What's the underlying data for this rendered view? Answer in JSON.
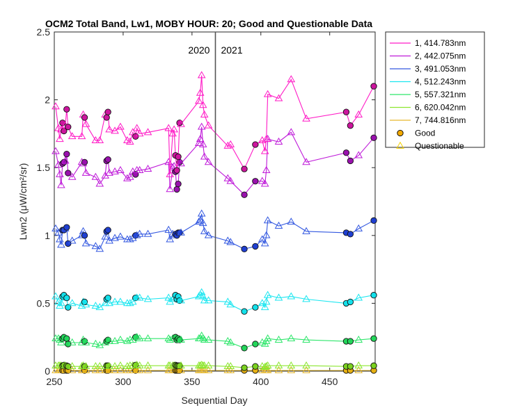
{
  "chart_data": {
    "type": "scatter",
    "title": "OCM2 Total Band, Lw1, MOBY HOUR: 20;  Good and Questionable Data",
    "xlabel": "Sequential Day",
    "ylabel": "Lwn2 (μW/cm²/sr)",
    "xlim": [
      250,
      483
    ],
    "ylim": [
      0,
      2.5
    ],
    "x_ticks": [
      250,
      300,
      350,
      400,
      450
    ],
    "y_ticks": [
      0,
      0.5,
      1,
      1.5,
      2,
      2.5
    ],
    "x_tick_labels": [
      "250",
      "300",
      "350",
      "400",
      "450"
    ],
    "y_tick_labels": [
      "0",
      "0.5",
      "1",
      "1.5",
      "2",
      "2.5"
    ],
    "grid": false,
    "legend_position": "outside-top-right",
    "year_divider": {
      "x": 367,
      "left_label": "2020",
      "right_label": "2021"
    },
    "x": [
      251,
      253,
      254,
      255,
      256,
      257,
      258,
      259,
      260,
      263,
      270,
      271,
      272,
      273,
      280,
      283,
      287,
      288,
      289,
      290,
      294,
      298,
      303,
      305,
      307,
      309,
      310,
      312,
      318,
      333,
      334,
      336,
      337,
      338,
      339,
      340,
      341,
      342,
      355,
      356,
      357,
      358,
      359,
      362,
      376,
      378,
      388,
      396,
      401,
      403,
      404,
      405,
      413,
      422,
      433,
      462,
      465,
      471,
      482
    ],
    "marker_type": [
      "Q",
      "Q",
      "Q",
      "Q",
      "G",
      "G",
      "Q",
      "G",
      "G",
      "Q",
      "Q",
      "Q",
      "G",
      "Q",
      "Q",
      "Q",
      "Q",
      "G",
      "G",
      "Q",
      "Q",
      "Q",
      "Q",
      "Q",
      "Q",
      "G",
      "Q",
      "Q",
      "Q",
      "Q",
      "Q",
      "Q",
      "Q",
      "G",
      "G",
      "G",
      "G",
      "Q",
      "Q",
      "Q",
      "Q",
      "Q",
      "Q",
      "Q",
      "Q",
      "Q",
      "G",
      "G",
      "Q",
      "Q",
      "Q",
      "Q",
      "Q",
      "Q",
      "Q",
      "G",
      "G",
      "Q",
      "G"
    ],
    "series": [
      {
        "name": "1, 414.783nm",
        "color": "#ff1ac6",
        "good_fill": "#cc159e",
        "values": [
          1.95,
          1.79,
          1.71,
          1.78,
          1.83,
          1.77,
          1.81,
          1.93,
          1.8,
          1.73,
          1.73,
          1.89,
          1.87,
          1.82,
          1.7,
          1.7,
          1.89,
          1.87,
          1.91,
          1.78,
          1.77,
          1.8,
          1.7,
          1.69,
          1.76,
          1.73,
          1.79,
          1.75,
          1.76,
          1.79,
          1.45,
          1.75,
          1.78,
          1.59,
          1.48,
          1.58,
          1.83,
          1.82,
          1.99,
          2.05,
          2.18,
          1.96,
          1.89,
          1.81,
          1.66,
          1.67,
          1.49,
          1.67,
          1.7,
          1.62,
          1.71,
          2.04,
          2.01,
          2.15,
          1.86,
          1.91,
          1.81,
          1.89,
          2.1
        ]
      },
      {
        "name": "2, 442.075nm",
        "color": "#bf1ad9",
        "good_fill": "#9911ad",
        "values": [
          1.62,
          1.52,
          1.45,
          1.37,
          1.53,
          1.54,
          1.55,
          1.6,
          1.46,
          1.43,
          1.54,
          1.53,
          1.54,
          1.46,
          1.43,
          1.38,
          1.44,
          1.55,
          1.56,
          1.46,
          1.47,
          1.48,
          1.42,
          1.43,
          1.47,
          1.45,
          1.48,
          1.48,
          1.49,
          1.54,
          1.34,
          1.5,
          1.51,
          1.47,
          1.34,
          1.38,
          1.54,
          1.53,
          1.68,
          1.71,
          1.8,
          1.67,
          1.58,
          1.54,
          1.42,
          1.4,
          1.3,
          1.4,
          1.4,
          1.38,
          1.48,
          1.71,
          1.69,
          1.76,
          1.54,
          1.61,
          1.55,
          1.59,
          1.72
        ]
      },
      {
        "name": "3, 491.053nm",
        "color": "#3358e0",
        "good_fill": "#1f3fd1",
        "values": [
          1.05,
          1.02,
          0.97,
          0.93,
          1.04,
          1.04,
          1.05,
          1.06,
          0.94,
          0.96,
          1.0,
          1.03,
          1.0,
          0.94,
          0.92,
          0.9,
          0.99,
          1.03,
          1.04,
          0.96,
          0.98,
          0.99,
          0.97,
          0.97,
          0.98,
          1.0,
          1.0,
          1.01,
          1.01,
          1.04,
          0.97,
          1.01,
          1.0,
          1.01,
          1.0,
          1.02,
          1.02,
          1.02,
          1.1,
          1.11,
          1.16,
          1.09,
          1.03,
          1.0,
          0.96,
          0.95,
          0.9,
          0.92,
          0.97,
          0.94,
          1.0,
          1.11,
          1.07,
          1.1,
          1.03,
          1.02,
          1.01,
          1.05,
          1.11
        ]
      },
      {
        "name": "4, 512.243nm",
        "color": "#1ae6f0",
        "good_fill": "#12e0ea",
        "values": [
          0.55,
          0.51,
          0.48,
          0.5,
          0.55,
          0.56,
          0.54,
          0.54,
          0.47,
          0.5,
          0.48,
          0.51,
          0.51,
          0.49,
          0.48,
          0.47,
          0.5,
          0.53,
          0.54,
          0.5,
          0.51,
          0.51,
          0.5,
          0.5,
          0.51,
          0.54,
          0.54,
          0.54,
          0.53,
          0.54,
          0.51,
          0.53,
          0.54,
          0.56,
          0.53,
          0.55,
          0.52,
          0.52,
          0.55,
          0.56,
          0.58,
          0.55,
          0.52,
          0.52,
          0.51,
          0.49,
          0.44,
          0.47,
          0.5,
          0.47,
          0.51,
          0.56,
          0.54,
          0.55,
          0.53,
          0.5,
          0.51,
          0.54,
          0.56
        ]
      },
      {
        "name": "5, 557.321nm",
        "color": "#2ee66b",
        "good_fill": "#22d65a",
        "values": [
          0.24,
          0.24,
          0.23,
          0.21,
          0.24,
          0.25,
          0.24,
          0.24,
          0.2,
          0.21,
          0.21,
          0.23,
          0.22,
          0.21,
          0.2,
          0.19,
          0.21,
          0.22,
          0.23,
          0.22,
          0.22,
          0.23,
          0.22,
          0.23,
          0.23,
          0.25,
          0.25,
          0.24,
          0.24,
          0.24,
          0.23,
          0.24,
          0.24,
          0.25,
          0.23,
          0.24,
          0.23,
          0.23,
          0.24,
          0.24,
          0.26,
          0.24,
          0.23,
          0.23,
          0.22,
          0.21,
          0.17,
          0.2,
          0.21,
          0.2,
          0.22,
          0.24,
          0.23,
          0.24,
          0.23,
          0.22,
          0.22,
          0.23,
          0.24
        ]
      },
      {
        "name": "6, 620.042nm",
        "color": "#8ce62e",
        "good_fill": "#7ad11f",
        "values": [
          0.04,
          0.04,
          0.04,
          0.04,
          0.04,
          0.045,
          0.04,
          0.04,
          0.035,
          0.035,
          0.035,
          0.04,
          0.035,
          0.035,
          0.035,
          0.035,
          0.035,
          0.04,
          0.04,
          0.035,
          0.035,
          0.04,
          0.035,
          0.04,
          0.04,
          0.045,
          0.045,
          0.04,
          0.04,
          0.04,
          0.04,
          0.04,
          0.04,
          0.045,
          0.04,
          0.04,
          0.04,
          0.04,
          0.04,
          0.04,
          0.045,
          0.04,
          0.04,
          0.04,
          0.035,
          0.035,
          0.025,
          0.035,
          0.035,
          0.03,
          0.035,
          0.04,
          0.04,
          0.04,
          0.04,
          0.035,
          0.035,
          0.04,
          0.04
        ]
      },
      {
        "name": "7, 744.816nm",
        "color": "#e6b82e",
        "good_fill": "#e6b012",
        "values": [
          0.005,
          0.005,
          0.005,
          0.005,
          0.005,
          0.005,
          0.005,
          0.005,
          0.005,
          0.005,
          0.005,
          0.005,
          0.005,
          0.005,
          0.005,
          0.005,
          0.005,
          0.005,
          0.005,
          0.005,
          0.005,
          0.005,
          0.005,
          0.005,
          0.005,
          0.005,
          0.005,
          0.005,
          0.005,
          0.005,
          0.005,
          0.005,
          0.005,
          0.005,
          0.005,
          0.005,
          0.005,
          0.005,
          0.005,
          0.005,
          0.005,
          0.005,
          0.005,
          0.005,
          0.005,
          0.005,
          0.005,
          0.005,
          0.005,
          0.005,
          0.005,
          0.005,
          0.005,
          0.005,
          0.005,
          0.005,
          0.005,
          0.005,
          0.005
        ]
      }
    ],
    "legend_markers": [
      {
        "label": "Good",
        "symbol": "circle",
        "fill": "#f2a900",
        "edge": "#000000"
      },
      {
        "label": "Questionable",
        "symbol": "triangle",
        "fill": "none",
        "edge": "#f5d000"
      }
    ]
  }
}
